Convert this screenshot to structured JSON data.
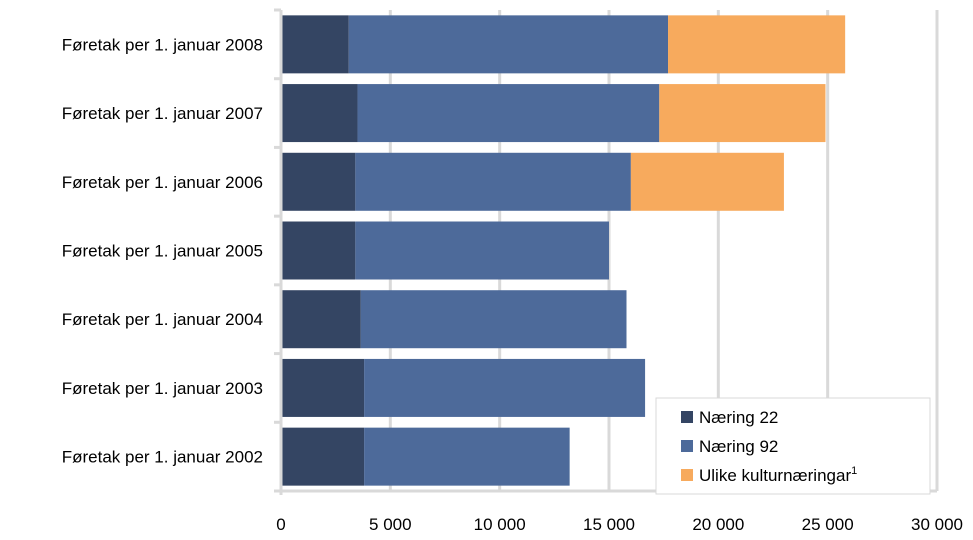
{
  "chart_data": {
    "type": "bar",
    "orientation": "horizontal",
    "stacked": true,
    "title": "",
    "xlabel": "",
    "ylabel": "",
    "categories": [
      "Føretak per 1. januar 2008",
      "Føretak per 1. januar 2007",
      "Føretak per 1. januar 2006",
      "Føretak per 1. januar 2005",
      "Føretak per 1. januar 2004",
      "Føretak per 1. januar 2003",
      "Føretak per 1. januar 2002"
    ],
    "series": [
      {
        "name": "Næring 22",
        "color": "#344563",
        "values": [
          3100,
          3500,
          3400,
          3400,
          3650,
          3800,
          3800
        ]
      },
      {
        "name": "Næring 92",
        "color": "#4d6a9a",
        "values": [
          14600,
          13800,
          12600,
          11600,
          12150,
          12850,
          9400
        ]
      },
      {
        "name": "Ulike kulturnæringar",
        "footnote": "1",
        "color": "#f7aa5d",
        "values": [
          8100,
          7600,
          7000,
          0,
          0,
          0,
          0
        ]
      }
    ],
    "xlim": [
      0,
      30000
    ],
    "xticks": [
      0,
      5000,
      10000,
      15000,
      20000,
      25000,
      30000
    ],
    "xtick_labels": [
      "0",
      "5 000",
      "10 000",
      "15 000",
      "20 000",
      "25 000",
      "30 000"
    ],
    "grid": true,
    "legend_position": "bottom-right"
  }
}
